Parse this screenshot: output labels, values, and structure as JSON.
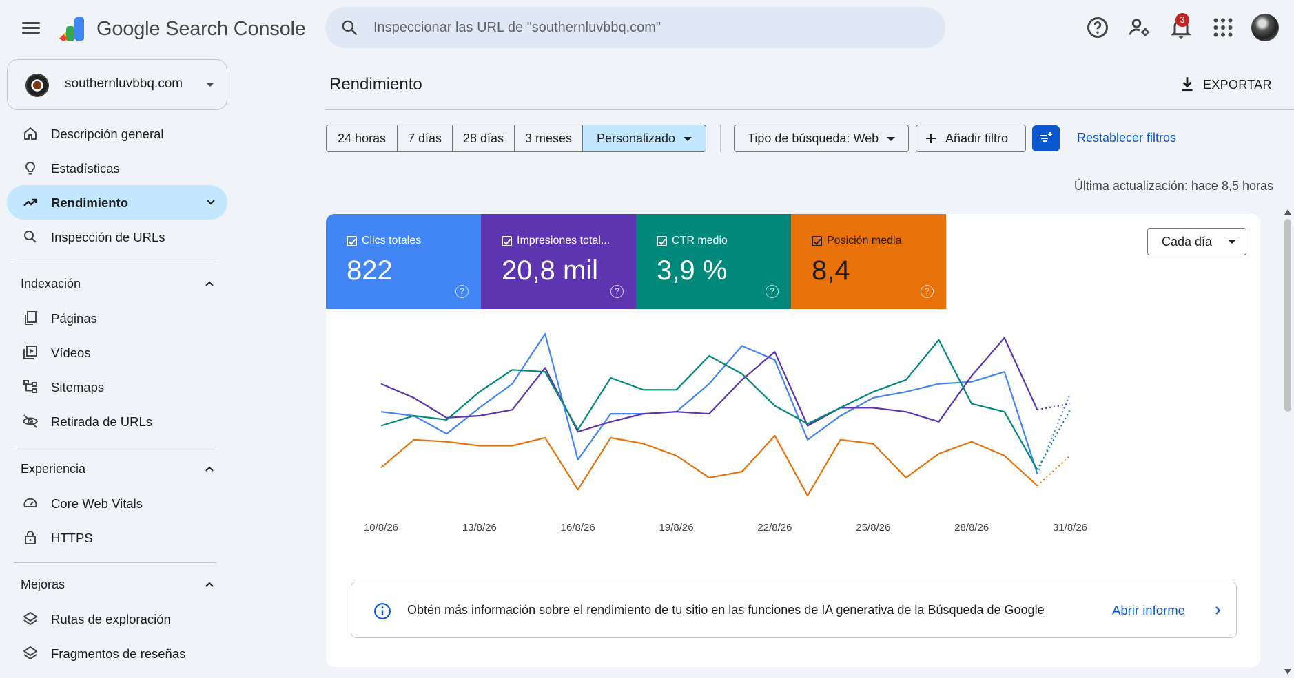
{
  "app": {
    "brand": "Google Search Console",
    "notifications_count": "3"
  },
  "search": {
    "placeholder": "Inspeccionar las URL de \"southernluvbbq.com\""
  },
  "property": {
    "name": "southernluvbbq.com"
  },
  "sidebar": {
    "items": [
      {
        "label": "Descripción general",
        "icon": "home-icon"
      },
      {
        "label": "Estadísticas",
        "icon": "lightbulb-icon"
      },
      {
        "label": "Rendimiento",
        "icon": "trending-up-icon",
        "active": true
      },
      {
        "label": "Inspección de URLs",
        "icon": "search-icon"
      }
    ],
    "sections": [
      {
        "label": "Indexación",
        "items": [
          {
            "label": "Páginas",
            "icon": "pages-icon"
          },
          {
            "label": "Vídeos",
            "icon": "video-library-icon"
          },
          {
            "label": "Sitemaps",
            "icon": "sitemap-icon"
          },
          {
            "label": "Retirada de URLs",
            "icon": "visibility-off-icon"
          }
        ]
      },
      {
        "label": "Experiencia",
        "items": [
          {
            "label": "Core Web Vitals",
            "icon": "speed-icon"
          },
          {
            "label": "HTTPS",
            "icon": "lock-icon"
          }
        ]
      },
      {
        "label": "Mejoras",
        "items": [
          {
            "label": "Rutas de exploración",
            "icon": "layers-icon"
          },
          {
            "label": "Fragmentos de reseñas",
            "icon": "layers-icon"
          }
        ]
      }
    ]
  },
  "main": {
    "title": "Rendimiento",
    "export_label": "EXPORTAR",
    "date_ranges": [
      "24 horas",
      "7 días",
      "28 días",
      "3 meses",
      "Personalizado"
    ],
    "selected_range": "Personalizado",
    "search_type": "Tipo de búsqueda: Web",
    "add_filter": "Añadir filtro",
    "reset_filters": "Restablecer filtros",
    "last_updated": "Última actualización: hace 8,5 horas",
    "granularity": "Cada día"
  },
  "metrics": [
    {
      "label": "Clics totales",
      "value": "822",
      "color": "#4285f4"
    },
    {
      "label": "Impresiones total...",
      "value": "20,8 mil",
      "color": "#5e35b1"
    },
    {
      "label": "CTR medio",
      "value": "3,9 %",
      "color": "#00897b"
    },
    {
      "label": "Posición media",
      "value": "8,4",
      "color": "#e8710a"
    }
  ],
  "chart_data": {
    "type": "line",
    "x": [
      "10/8/26",
      "11/8/26",
      "12/8/26",
      "13/8/26",
      "14/8/26",
      "15/8/26",
      "16/8/26",
      "17/8/26",
      "18/8/26",
      "19/8/26",
      "20/8/26",
      "21/8/26",
      "22/8/26",
      "23/8/26",
      "24/8/26",
      "25/8/26",
      "26/8/26",
      "27/8/26",
      "28/8/26",
      "29/8/26",
      "30/8/26",
      "31/8/26"
    ],
    "x_ticks": [
      "10/8/26",
      "13/8/26",
      "16/8/26",
      "19/8/26",
      "22/8/26",
      "25/8/26",
      "28/8/26",
      "31/8/26"
    ],
    "y_range": [
      0,
      1
    ],
    "partial_last_point": true,
    "series": [
      {
        "name": "Clics totales",
        "color": "#4285f4",
        "values": [
          0.52,
          0.5,
          0.41,
          0.54,
          0.66,
          0.91,
          0.28,
          0.51,
          0.51,
          0.52,
          0.66,
          0.85,
          0.78,
          0.38,
          0.5,
          0.59,
          0.62,
          0.66,
          0.67,
          0.72,
          0.21,
          0.61
        ]
      },
      {
        "name": "Impresiones totales",
        "color": "#5e35b1",
        "values": [
          0.66,
          0.59,
          0.49,
          0.5,
          0.53,
          0.74,
          0.42,
          0.47,
          0.51,
          0.52,
          0.51,
          0.68,
          0.82,
          0.45,
          0.54,
          0.54,
          0.52,
          0.47,
          0.7,
          0.89,
          0.53,
          0.56
        ]
      },
      {
        "name": "CTR medio",
        "color": "#00897b",
        "values": [
          0.45,
          0.5,
          0.48,
          0.62,
          0.73,
          0.72,
          0.43,
          0.69,
          0.63,
          0.63,
          0.8,
          0.71,
          0.55,
          0.46,
          0.54,
          0.62,
          0.68,
          0.88,
          0.56,
          0.52,
          0.23,
          0.53
        ]
      },
      {
        "name": "Posición media",
        "color": "#e8710a",
        "values": [
          0.24,
          0.38,
          0.37,
          0.35,
          0.35,
          0.39,
          0.13,
          0.39,
          0.36,
          0.3,
          0.19,
          0.22,
          0.4,
          0.1,
          0.38,
          0.36,
          0.19,
          0.31,
          0.37,
          0.3,
          0.15,
          0.3
        ]
      }
    ]
  },
  "info_banner": {
    "text": "Obtén más información sobre el rendimiento de tu sitio en las funciones de IA generativa de la Búsqueda de Google",
    "link": "Abrir informe"
  }
}
